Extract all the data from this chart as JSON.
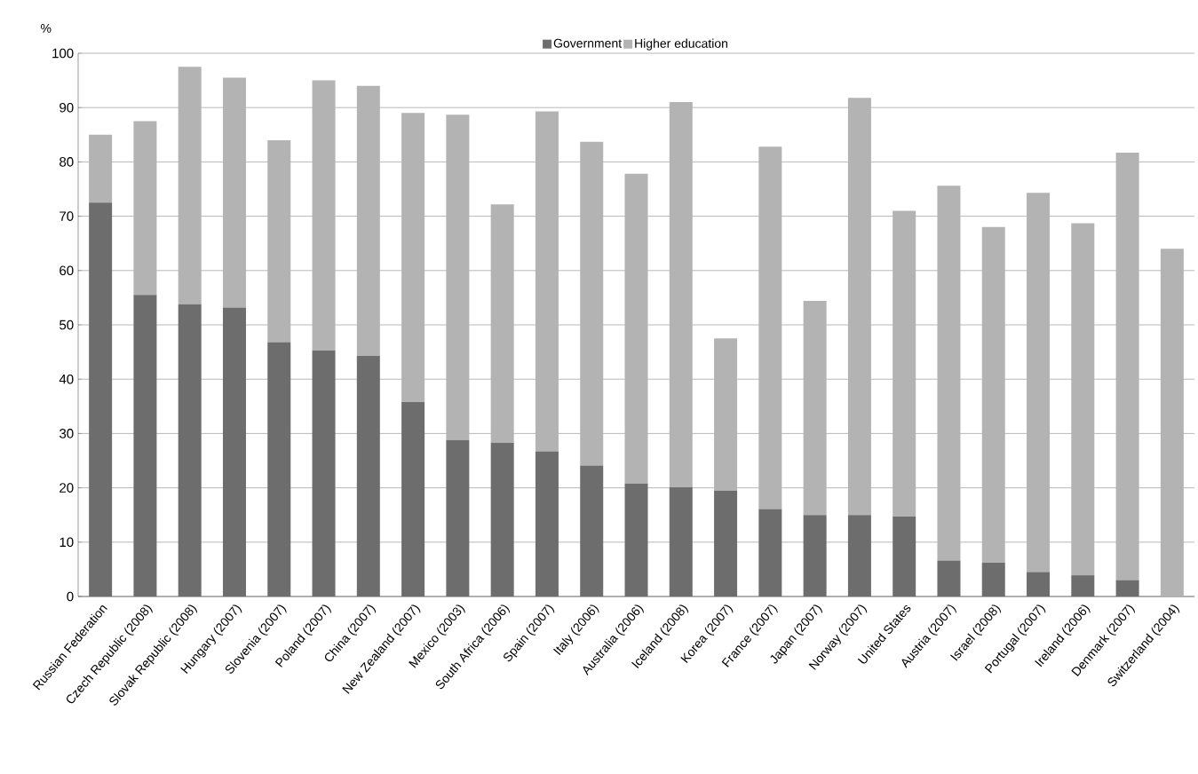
{
  "chart_data": {
    "type": "bar",
    "stacked": true,
    "ylabel": "%",
    "categories": [
      "Russian Federation",
      "Czech Republic (2008)",
      "Slovak Republic (2008)",
      "Hungary (2007)",
      "Slovenia (2007)",
      "Poland (2007)",
      "China (2007)",
      "New Zealand (2007)",
      "Mexico (2003)",
      "South Africa (2006)",
      "Spain (2007)",
      "Italy (2006)",
      "Australia (2006)",
      "Iceland (2008)",
      "Korea (2007)",
      "France (2007)",
      "Japan (2007)",
      "Norway (2007)",
      "United States",
      "Austria (2007)",
      "Israel (2008)",
      "Portugal (2007)",
      "Ireland (2006)",
      "Denmark (2007)",
      "Switzerland (2004)"
    ],
    "series": [
      {
        "name": "Government",
        "color": "#6d6d6d",
        "values": [
          72.5,
          55.5,
          53.8,
          53.2,
          46.8,
          45.3,
          44.3,
          35.8,
          28.8,
          28.3,
          26.7,
          24.1,
          20.8,
          20.1,
          19.5,
          16.1,
          15,
          15,
          14.7,
          6.6,
          6.2,
          4.5,
          3.9,
          3,
          0
        ]
      },
      {
        "name": "Higher education",
        "color": "#b3b3b3",
        "values": [
          12.5,
          32,
          43.7,
          42.3,
          37.2,
          49.7,
          49.7,
          53.2,
          59.9,
          43.9,
          62.6,
          59.6,
          57,
          70.9,
          28,
          66.7,
          39.4,
          76.8,
          56.3,
          69,
          61.8,
          69.8,
          64.8,
          78.7,
          64
        ]
      }
    ],
    "ylim": [
      0,
      100
    ],
    "yticks": [
      0,
      10,
      20,
      30,
      40,
      50,
      60,
      70,
      80,
      90,
      100
    ],
    "grid": "y",
    "legend": "top"
  }
}
